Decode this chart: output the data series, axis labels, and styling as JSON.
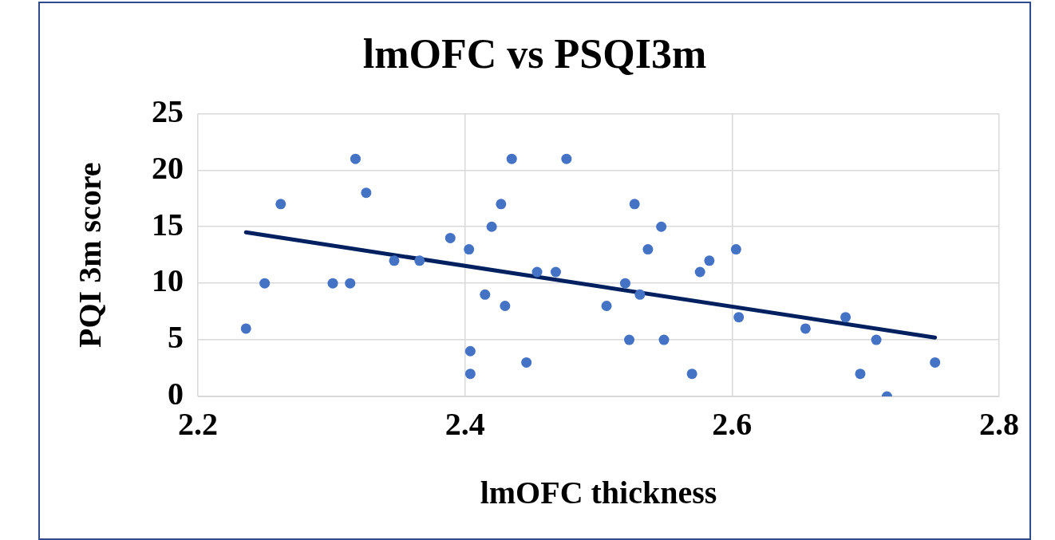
{
  "chart_data": {
    "type": "scatter",
    "title": "lmOFC vs PSQI3m",
    "xlabel": "lmOFC thickness",
    "ylabel": "PQI 3m score",
    "xlim": [
      2.2,
      2.8
    ],
    "xticks": [
      2.2,
      2.4,
      2.6,
      2.8
    ],
    "ylim": [
      0,
      25
    ],
    "yticks": [
      0,
      5,
      10,
      15,
      20,
      25
    ],
    "grid": true,
    "legend": false,
    "marker": "circle",
    "series": [
      {
        "color": "#4472c4",
        "x": [
          2.236,
          2.25,
          2.262,
          2.301,
          2.314,
          2.318,
          2.326,
          2.347,
          2.366,
          2.389,
          2.403,
          2.404,
          2.404,
          2.415,
          2.42,
          2.427,
          2.43,
          2.435,
          2.446,
          2.454,
          2.468,
          2.476,
          2.506,
          2.52,
          2.523,
          2.527,
          2.531,
          2.537,
          2.547,
          2.549,
          2.57,
          2.576,
          2.583,
          2.603,
          2.605,
          2.655,
          2.685,
          2.696,
          2.708,
          2.716,
          2.752
        ],
        "values": [
          6,
          10,
          17,
          10,
          10,
          21,
          18,
          12,
          12,
          14,
          13,
          4,
          2,
          9,
          15,
          17,
          8,
          21,
          3,
          11,
          11,
          21,
          8,
          10,
          5,
          17,
          9,
          13,
          15,
          5,
          2,
          11,
          12,
          13,
          7,
          6,
          7,
          2,
          5,
          0,
          3
        ]
      },
      {
        "type": "line",
        "color": "#002060",
        "marker": "none",
        "x": [
          2.236,
          2.752
        ],
        "values": [
          14.5,
          5.2
        ]
      }
    ]
  }
}
